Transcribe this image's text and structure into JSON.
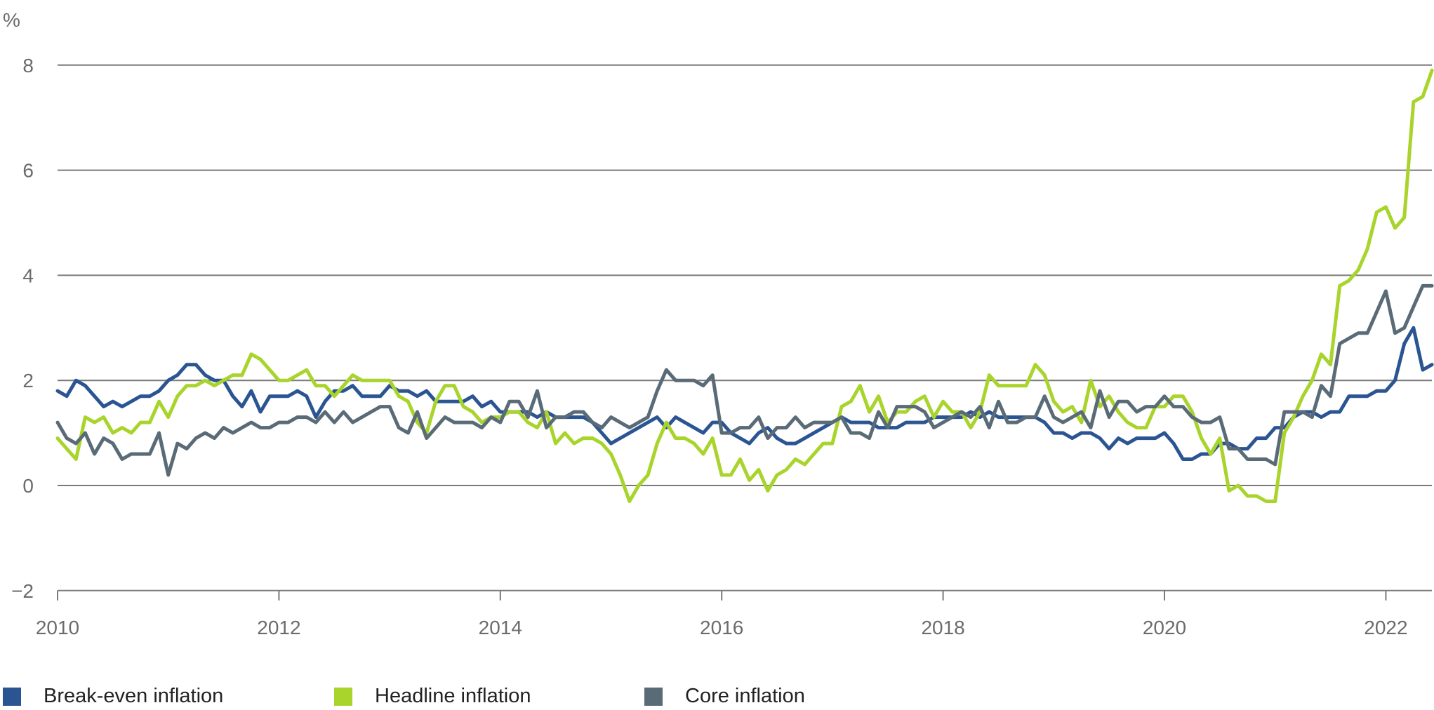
{
  "chart_data": {
    "type": "line",
    "title": "",
    "ylabel": "%",
    "xlabel": "",
    "ylim": [
      -2,
      8
    ],
    "yticks": [
      -2,
      0,
      2,
      4,
      6,
      8
    ],
    "ytick_labels": [
      "−2",
      "0",
      "2",
      "4",
      "6",
      "8"
    ],
    "xlim": [
      2010,
      2022.42
    ],
    "xticks": [
      2010,
      2012,
      2014,
      2016,
      2018,
      2020,
      2022
    ],
    "xtick_labels": [
      "2010",
      "2012",
      "2014",
      "2016",
      "2018",
      "2020",
      "2022"
    ],
    "x_start": "2010-01",
    "frequency": "monthly",
    "grid": "horizontal",
    "legend_position": "bottom",
    "series": [
      {
        "name": "Break-even inflation",
        "color": "#2b5592",
        "values": [
          1.8,
          1.7,
          2.0,
          1.9,
          1.7,
          1.5,
          1.6,
          1.5,
          1.6,
          1.7,
          1.7,
          1.8,
          2.0,
          2.1,
          2.3,
          2.3,
          2.1,
          2.0,
          2.0,
          1.7,
          1.5,
          1.8,
          1.4,
          1.7,
          1.7,
          1.7,
          1.8,
          1.7,
          1.3,
          1.6,
          1.8,
          1.8,
          1.9,
          1.7,
          1.7,
          1.7,
          1.9,
          1.8,
          1.8,
          1.7,
          1.8,
          1.6,
          1.6,
          1.6,
          1.6,
          1.7,
          1.5,
          1.6,
          1.4,
          1.4,
          1.4,
          1.4,
          1.3,
          1.4,
          1.3,
          1.3,
          1.3,
          1.3,
          1.2,
          1.0,
          0.8,
          0.9,
          1.0,
          1.1,
          1.2,
          1.3,
          1.1,
          1.3,
          1.2,
          1.1,
          1.0,
          1.2,
          1.2,
          1.0,
          0.9,
          0.8,
          1.0,
          1.1,
          0.9,
          0.8,
          0.8,
          0.9,
          1.0,
          1.1,
          1.2,
          1.3,
          1.2,
          1.2,
          1.2,
          1.1,
          1.1,
          1.1,
          1.2,
          1.2,
          1.2,
          1.3,
          1.3,
          1.3,
          1.3,
          1.4,
          1.3,
          1.4,
          1.3,
          1.3,
          1.3,
          1.3,
          1.3,
          1.2,
          1.0,
          1.0,
          0.9,
          1.0,
          1.0,
          0.9,
          0.7,
          0.9,
          0.8,
          0.9,
          0.9,
          0.9,
          1.0,
          0.8,
          0.5,
          0.5,
          0.6,
          0.6,
          0.8,
          0.8,
          0.7,
          0.7,
          0.9,
          0.9,
          1.1,
          1.1,
          1.3,
          1.4,
          1.4,
          1.3,
          1.4,
          1.4,
          1.7,
          1.7,
          1.7,
          1.8,
          1.8,
          2.0,
          2.7,
          3.0,
          2.2,
          2.3
        ]
      },
      {
        "name": "Headline inflation",
        "color": "#a8d42b",
        "values": [
          0.9,
          0.7,
          0.5,
          1.3,
          1.2,
          1.3,
          1.0,
          1.1,
          1.0,
          1.2,
          1.2,
          1.6,
          1.3,
          1.7,
          1.9,
          1.9,
          2.0,
          1.9,
          2.0,
          2.1,
          2.1,
          2.5,
          2.4,
          2.2,
          2.0,
          2.0,
          2.1,
          2.2,
          1.9,
          1.9,
          1.7,
          1.9,
          2.1,
          2.0,
          2.0,
          2.0,
          2.0,
          1.7,
          1.6,
          1.2,
          1.0,
          1.6,
          1.9,
          1.9,
          1.5,
          1.4,
          1.2,
          1.3,
          1.3,
          1.4,
          1.4,
          1.2,
          1.1,
          1.4,
          0.8,
          1.0,
          0.8,
          0.9,
          0.9,
          0.8,
          0.6,
          0.2,
          -0.3,
          0.0,
          0.2,
          0.8,
          1.2,
          0.9,
          0.9,
          0.8,
          0.6,
          0.9,
          0.2,
          0.2,
          0.5,
          0.1,
          0.3,
          -0.1,
          0.2,
          0.3,
          0.5,
          0.4,
          0.6,
          0.8,
          0.8,
          1.5,
          1.6,
          1.9,
          1.4,
          1.7,
          1.2,
          1.4,
          1.4,
          1.6,
          1.7,
          1.3,
          1.6,
          1.4,
          1.4,
          1.1,
          1.4,
          2.1,
          1.9,
          1.9,
          1.9,
          1.9,
          2.3,
          2.1,
          1.6,
          1.4,
          1.5,
          1.2,
          2.0,
          1.5,
          1.7,
          1.4,
          1.2,
          1.1,
          1.1,
          1.5,
          1.5,
          1.7,
          1.7,
          1.4,
          0.9,
          0.6,
          0.9,
          -0.1,
          0.0,
          -0.2,
          -0.2,
          -0.3,
          -0.3,
          1.0,
          1.3,
          1.7,
          2.0,
          2.5,
          2.3,
          3.8,
          3.9,
          4.1,
          4.5,
          5.2,
          5.3,
          4.9,
          5.1,
          7.3,
          7.4,
          7.9
        ]
      },
      {
        "name": "Core inflation",
        "color": "#5a6b78",
        "values": [
          1.2,
          0.9,
          0.8,
          1.0,
          0.6,
          0.9,
          0.8,
          0.5,
          0.6,
          0.6,
          0.6,
          1.0,
          0.2,
          0.8,
          0.7,
          0.9,
          1.0,
          0.9,
          1.1,
          1.0,
          1.1,
          1.2,
          1.1,
          1.1,
          1.2,
          1.2,
          1.3,
          1.3,
          1.2,
          1.4,
          1.2,
          1.4,
          1.2,
          1.3,
          1.4,
          1.5,
          1.5,
          1.1,
          1.0,
          1.4,
          0.9,
          1.1,
          1.3,
          1.2,
          1.2,
          1.2,
          1.1,
          1.3,
          1.2,
          1.6,
          1.6,
          1.3,
          1.8,
          1.1,
          1.3,
          1.3,
          1.4,
          1.4,
          1.2,
          1.1,
          1.3,
          1.2,
          1.1,
          1.2,
          1.3,
          1.8,
          2.2,
          2.0,
          2.0,
          2.0,
          1.9,
          2.1,
          1.0,
          1.0,
          1.1,
          1.1,
          1.3,
          0.9,
          1.1,
          1.1,
          1.3,
          1.1,
          1.2,
          1.2,
          1.2,
          1.3,
          1.0,
          1.0,
          0.9,
          1.4,
          1.1,
          1.5,
          1.5,
          1.5,
          1.4,
          1.1,
          1.2,
          1.3,
          1.4,
          1.3,
          1.5,
          1.1,
          1.6,
          1.2,
          1.2,
          1.3,
          1.3,
          1.7,
          1.3,
          1.2,
          1.3,
          1.4,
          1.1,
          1.8,
          1.3,
          1.6,
          1.6,
          1.4,
          1.5,
          1.5,
          1.7,
          1.5,
          1.5,
          1.3,
          1.2,
          1.2,
          1.3,
          0.7,
          0.7,
          0.5,
          0.5,
          0.5,
          0.4,
          1.4,
          1.4,
          1.4,
          1.3,
          1.9,
          1.7,
          2.7,
          2.8,
          2.9,
          2.9,
          3.3,
          3.7,
          2.9,
          3.0,
          3.4,
          3.8,
          3.8
        ]
      }
    ]
  }
}
